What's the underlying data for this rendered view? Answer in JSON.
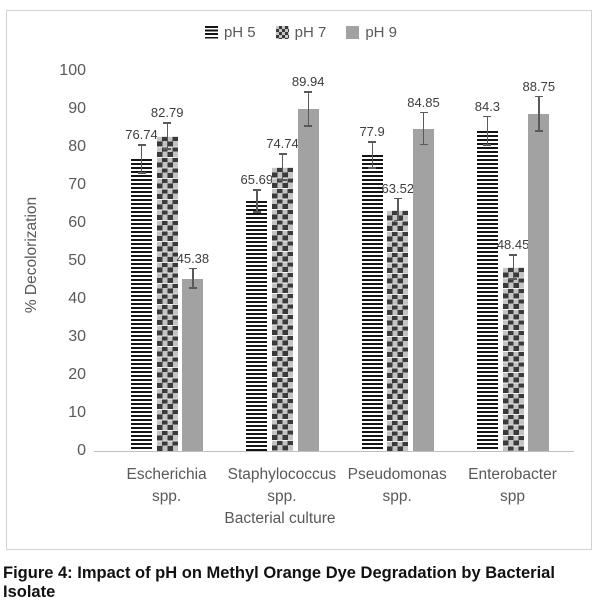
{
  "figure": {
    "caption": "Figure 4: Impact of pH on Methyl Orange Dye Degradation by Bacterial Isolate"
  },
  "chart_data": {
    "type": "bar",
    "title": "",
    "xlabel": "Bacterial culture",
    "ylabel": "% Decolorization",
    "ylim": [
      0,
      100
    ],
    "ytick_step": 10,
    "grid": false,
    "legend_position": "top-center",
    "categories": [
      "Escherichia\nspp.",
      "Staphylococcus\nspp.",
      "Pseudomonas\nspp.",
      "Enterobacter\nspp"
    ],
    "series": [
      {
        "name": "pH 5",
        "pattern": "hstripes",
        "values": [
          76.74,
          65.69,
          77.9,
          84.3
        ],
        "errors": [
          3.7,
          2.9,
          3.4,
          3.7
        ]
      },
      {
        "name": "pH 7",
        "pattern": "checker",
        "values": [
          82.79,
          74.74,
          63.52,
          48.45
        ],
        "errors": [
          3.4,
          3.4,
          2.9,
          3.2
        ]
      },
      {
        "name": "pH 9",
        "pattern": "solid",
        "values": [
          45.38,
          89.94,
          84.85,
          88.75
        ],
        "errors": [
          2.6,
          4.5,
          4.2,
          4.5
        ]
      }
    ],
    "data_labels": [
      "76.74",
      "82.79",
      "45.38",
      "65.69",
      "74.74",
      "89.94",
      "77.9",
      "63.52",
      "84.85",
      "84.3",
      "48.45",
      "88.75"
    ],
    "colors": {
      "solid_bar": "#a2a2a2",
      "stripe_dark": "#141414",
      "checker_dark": "#3a3a3a",
      "checker_light": "#c4c4c4",
      "error_bar": "#595959",
      "axis_line": "#c0c0c0",
      "tick_text": "#595959",
      "label_text": "#3d3d3d",
      "frame_border": "#d2d2d2"
    }
  }
}
